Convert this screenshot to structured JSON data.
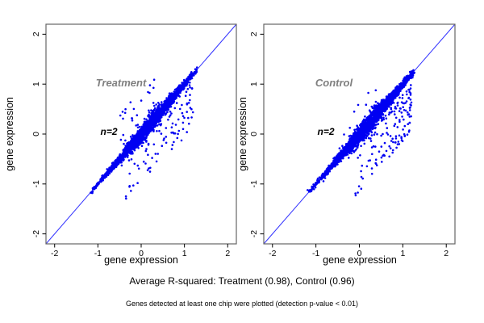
{
  "figure": {
    "captions": {
      "r_squared_line": "Average R-squared: Treatment (0.98), Control (0.96)",
      "filter_note": "Genes detected at least one chip were plotted (detection p-value < 0.01)"
    },
    "colors": {
      "points": "#0000F2",
      "identity_line": "#3333FF",
      "panel_border": "#666666",
      "axis_text": "#000000",
      "panel_label_text": "#808080",
      "background": "#FFFFFF"
    }
  },
  "chart_data": [
    {
      "type": "scatter",
      "title": "Treatment",
      "annotation": "n=2",
      "xlabel": "gene expression",
      "ylabel": "gene expression",
      "xlim": [
        -2.2,
        2.2
      ],
      "ylim": [
        -2.2,
        2.2
      ],
      "xticks": [
        -2,
        -1,
        0,
        1,
        2
      ],
      "yticks": [
        -2,
        -1,
        0,
        1,
        2
      ],
      "grid": false,
      "legend": "none",
      "identity_line": {
        "slope": 1,
        "intercept": 0
      },
      "r_squared": 0.98,
      "n_replicates": 2,
      "label_pos": [
        -0.47,
        1.03
      ],
      "annotation_pos": [
        -0.76,
        0.04
      ],
      "summary": {
        "description": "Dense blue cloud of replicate gene-expression values hugging the y=x diagonal from (-1.15,-1.15) to (1.28,1.28); moderate number of outliers scattered below the diagonal for x>-0.4, and a few outliers above the diagonal around x=-0.3..0.3, y up to ~0.9",
        "approx_n_points": 2400
      },
      "generator": {
        "seed": 20981,
        "n_core": 2300,
        "t_mean": 0.18,
        "t_sd": 0.62,
        "t_min": -1.16,
        "t_max": 1.28,
        "band_sd_base": 0.022,
        "band_sd_peak": 0.055,
        "below_tail_frac": 0.22,
        "n_below": 95,
        "below_x_min": -0.45,
        "below_x_span": 1.65,
        "below_x_pow": 0.7,
        "below_gap_min": 0.12,
        "below_gap_span": 0.95,
        "n_above": 30,
        "above_x_min": -0.5,
        "above_x_span": 0.9,
        "above_gap_min": 0.15,
        "above_gap_span": 0.75
      }
    },
    {
      "type": "scatter",
      "title": "Control",
      "annotation": "n=2",
      "xlabel": "gene expression",
      "ylabel": "gene expression",
      "xlim": [
        -2.2,
        2.2
      ],
      "ylim": [
        -2.2,
        2.2
      ],
      "xticks": [
        -2,
        -1,
        0,
        1,
        2
      ],
      "yticks": [
        -2,
        -1,
        0,
        1,
        2
      ],
      "grid": false,
      "legend": "none",
      "identity_line": {
        "slope": 1,
        "intercept": 0
      },
      "r_squared": 0.96,
      "n_replicates": 2,
      "label_pos": [
        -0.58,
        1.02
      ],
      "annotation_pos": [
        -0.78,
        0.04
      ],
      "summary": {
        "description": "Dense blue cloud of replicate gene-expression values along the y=x diagonal from (-1.15,-1.15) to (1.25,1.25); a more prominent spray of outliers below the diagonal concentrated at x=0.2..1.2 reaching down to y=-0.8; very few outliers above the diagonal",
        "approx_n_points": 2450
      },
      "generator": {
        "seed": 7741,
        "n_core": 2300,
        "t_mean": 0.15,
        "t_sd": 0.6,
        "t_min": -1.16,
        "t_max": 1.26,
        "band_sd_base": 0.024,
        "band_sd_peak": 0.06,
        "below_tail_frac": 0.25,
        "n_below": 145,
        "below_x_min": -0.15,
        "below_x_span": 1.35,
        "below_x_pow": 0.6,
        "below_gap_min": 0.15,
        "below_gap_span": 1.0,
        "n_above": 12,
        "above_x_min": -0.4,
        "above_x_span": 0.8,
        "above_gap_min": 0.15,
        "above_gap_span": 0.5
      }
    }
  ]
}
